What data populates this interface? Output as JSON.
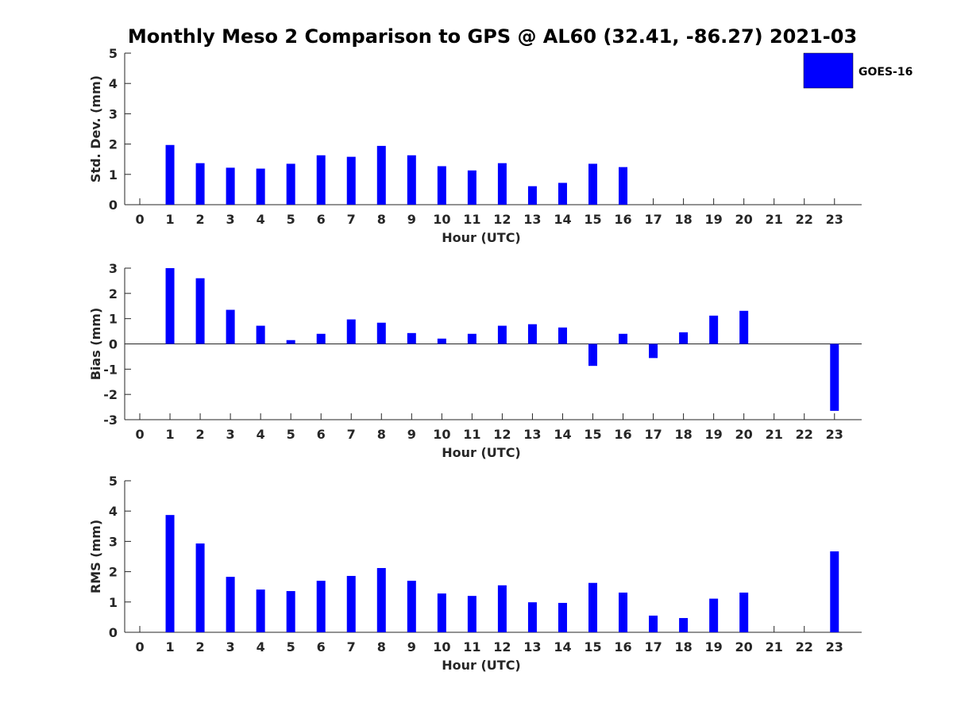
{
  "chart_data": [
    {
      "type": "bar",
      "title": "Monthly Meso 2 Comparison to GPS @ AL60 (32.41, -86.27) 2021-03",
      "xlabel": "Hour (UTC)",
      "ylabel": "Std. Dev. (mm)",
      "ylim": [
        0,
        5
      ],
      "yticks": [
        0,
        1,
        2,
        3,
        4,
        5
      ],
      "categories": [
        "0",
        "1",
        "2",
        "3",
        "4",
        "5",
        "6",
        "7",
        "8",
        "9",
        "10",
        "11",
        "12",
        "13",
        "14",
        "15",
        "16",
        "17",
        "18",
        "19",
        "20",
        "21",
        "22",
        "23"
      ],
      "series": [
        {
          "name": "GOES-16",
          "color": "#0000ff",
          "values": [
            null,
            1.97,
            1.37,
            1.22,
            1.19,
            1.35,
            1.63,
            1.58,
            1.94,
            1.63,
            1.27,
            1.13,
            1.37,
            0.61,
            0.72,
            1.35,
            1.24,
            null,
            null,
            null,
            null,
            null,
            null,
            null
          ]
        }
      ],
      "legend": {
        "location": "top-right",
        "entries": [
          "GOES-16"
        ]
      },
      "grid": false
    },
    {
      "type": "bar",
      "xlabel": "Hour (UTC)",
      "ylabel": "Bias (mm)",
      "ylim": [
        -3,
        3
      ],
      "yticks": [
        -3,
        -2,
        -1,
        0,
        1,
        2,
        3
      ],
      "categories": [
        "0",
        "1",
        "2",
        "3",
        "4",
        "5",
        "6",
        "7",
        "8",
        "9",
        "10",
        "11",
        "12",
        "13",
        "14",
        "15",
        "16",
        "17",
        "18",
        "19",
        "20",
        "21",
        "22",
        "23"
      ],
      "series": [
        {
          "name": "GOES-16",
          "color": "#0000ff",
          "values": [
            null,
            3.0,
            2.6,
            1.35,
            0.72,
            0.15,
            0.4,
            0.97,
            0.84,
            0.43,
            0.21,
            0.4,
            0.72,
            0.78,
            0.65,
            -0.87,
            0.4,
            -0.56,
            0.46,
            1.12,
            1.31,
            null,
            null,
            -2.65
          ]
        }
      ],
      "grid": false
    },
    {
      "type": "bar",
      "xlabel": "Hour (UTC)",
      "ylabel": "RMS (mm)",
      "ylim": [
        0,
        5
      ],
      "yticks": [
        0,
        1,
        2,
        3,
        4,
        5
      ],
      "categories": [
        "0",
        "1",
        "2",
        "3",
        "4",
        "5",
        "6",
        "7",
        "8",
        "9",
        "10",
        "11",
        "12",
        "13",
        "14",
        "15",
        "16",
        "17",
        "18",
        "19",
        "20",
        "21",
        "22",
        "23"
      ],
      "series": [
        {
          "name": "GOES-16",
          "color": "#0000ff",
          "values": [
            null,
            3.87,
            2.93,
            1.83,
            1.41,
            1.36,
            1.7,
            1.86,
            2.12,
            1.7,
            1.28,
            1.2,
            1.55,
            0.99,
            0.97,
            1.63,
            1.31,
            0.55,
            0.47,
            1.11,
            1.31,
            null,
            null,
            2.67
          ]
        }
      ],
      "grid": false
    }
  ]
}
